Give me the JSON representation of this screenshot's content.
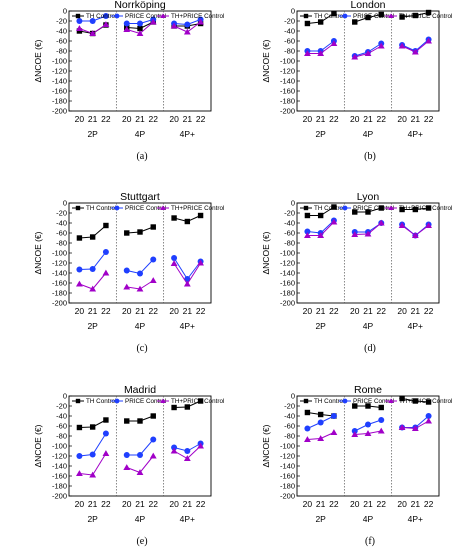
{
  "colors": {
    "th": "#000000",
    "price": "#1f3fff",
    "thprice": "#a100c8"
  },
  "chart_data": [
    {
      "type": "line",
      "title": "Norrköping",
      "caption": "(a)",
      "ylabel": "ΔNCOE (€)",
      "ylim": [
        -200,
        0
      ],
      "yticks": [
        0,
        -20,
        -40,
        -60,
        -80,
        -100,
        -120,
        -140,
        -160,
        -180,
        -200
      ],
      "groups": [
        "2P",
        "4P",
        "4P+"
      ],
      "x": [
        "20",
        "21",
        "22"
      ],
      "legend": [
        "TH Control",
        "PRICE Control",
        "TH+PRICE Control"
      ],
      "series": [
        {
          "name": "TH Control",
          "values": [
            [
              -40,
              -45,
              -28
            ],
            [
              -33,
              -35,
              -22
            ],
            [
              -30,
              -30,
              -25
            ]
          ]
        },
        {
          "name": "PRICE Control",
          "values": [
            [
              -20,
              -20,
              -10
            ],
            [
              -25,
              -25,
              -17
            ],
            [
              -25,
              -27,
              -17
            ]
          ]
        },
        {
          "name": "TH+PRICE Control",
          "values": [
            [
              -35,
              -45,
              -27
            ],
            [
              -37,
              -45,
              -22
            ],
            [
              -30,
              -42,
              -22
            ]
          ]
        }
      ]
    },
    {
      "type": "line",
      "title": "London",
      "caption": "(b)",
      "ylabel": "ΔNCOE (€)",
      "ylim": [
        -200,
        0
      ],
      "yticks": [
        0,
        -20,
        -40,
        -60,
        -80,
        -100,
        -120,
        -140,
        -160,
        -180,
        -200
      ],
      "groups": [
        "2P",
        "4P",
        "4P+"
      ],
      "x": [
        "20",
        "21",
        "22"
      ],
      "legend": [
        "TH Control",
        "PRICE Control",
        "TH+PRICE Control"
      ],
      "series": [
        {
          "name": "TH Control",
          "values": [
            [
              -25,
              -22,
              -5
            ],
            [
              -22,
              -13,
              -7
            ],
            [
              -12,
              -9,
              -3
            ]
          ]
        },
        {
          "name": "PRICE Control",
          "values": [
            [
              -80,
              -80,
              -60
            ],
            [
              -90,
              -82,
              -65
            ],
            [
              -68,
              -80,
              -57
            ]
          ]
        },
        {
          "name": "TH+PRICE Control",
          "values": [
            [
              -85,
              -85,
              -65
            ],
            [
              -92,
              -85,
              -70
            ],
            [
              -70,
              -82,
              -60
            ]
          ]
        }
      ]
    },
    {
      "type": "line",
      "title": "Stuttgart",
      "caption": "(c)",
      "ylabel": "ΔNCOE (€)",
      "ylim": [
        -200,
        0
      ],
      "yticks": [
        0,
        -20,
        -40,
        -60,
        -80,
        -100,
        -120,
        -140,
        -160,
        -180,
        -200
      ],
      "groups": [
        "2P",
        "4P",
        "4P+"
      ],
      "x": [
        "20",
        "21",
        "22"
      ],
      "legend": [
        "TH Control",
        "PRICE Control",
        "TH+PRICE Control"
      ],
      "series": [
        {
          "name": "TH Control",
          "values": [
            [
              -70,
              -68,
              -45
            ],
            [
              -60,
              -58,
              -48
            ],
            [
              -30,
              -37,
              -25
            ]
          ]
        },
        {
          "name": "PRICE Control",
          "values": [
            [
              -133,
              -132,
              -98
            ],
            [
              -135,
              -141,
              -113
            ],
            [
              -110,
              -152,
              -117
            ]
          ]
        },
        {
          "name": "TH+PRICE Control",
          "values": [
            [
              -162,
              -172,
              -140
            ],
            [
              -168,
              -172,
              -155
            ],
            [
              -121,
              -162,
              -120
            ]
          ]
        }
      ]
    },
    {
      "type": "line",
      "title": "Lyon",
      "caption": "(d)",
      "ylabel": "ΔNCOE (€)",
      "ylim": [
        -200,
        0
      ],
      "yticks": [
        0,
        -20,
        -40,
        -60,
        -80,
        -100,
        -120,
        -140,
        -160,
        -180,
        -200
      ],
      "groups": [
        "2P",
        "4P",
        "4P+"
      ],
      "x": [
        "20",
        "21",
        "22"
      ],
      "legend": [
        "TH Control",
        "PRICE Control",
        "TH+PRICE Control"
      ],
      "series": [
        {
          "name": "TH Control",
          "values": [
            [
              -25,
              -25,
              -8
            ],
            [
              -18,
              -18,
              -10
            ],
            [
              -13,
              -13,
              -10
            ]
          ]
        },
        {
          "name": "PRICE Control",
          "values": [
            [
              -57,
              -60,
              -35
            ],
            [
              -58,
              -58,
              -40
            ],
            [
              -43,
              -65,
              -43
            ]
          ]
        },
        {
          "name": "TH+PRICE Control",
          "values": [
            [
              -65,
              -65,
              -38
            ],
            [
              -63,
              -62,
              -40
            ],
            [
              -45,
              -65,
              -45
            ]
          ]
        }
      ]
    },
    {
      "type": "line",
      "title": "Madrid",
      "caption": "(e)",
      "ylabel": "ΔNCOE (€)",
      "ylim": [
        -200,
        0
      ],
      "yticks": [
        0,
        -20,
        -40,
        -60,
        -80,
        -100,
        -120,
        -140,
        -160,
        -180,
        -200
      ],
      "groups": [
        "2P",
        "4P",
        "4P+"
      ],
      "x": [
        "20",
        "21",
        "22"
      ],
      "legend": [
        "TH Control",
        "PRICE Control",
        "TH+PRICE Control"
      ],
      "series": [
        {
          "name": "TH Control",
          "values": [
            [
              -63,
              -62,
              -48
            ],
            [
              -50,
              -50,
              -40
            ],
            [
              -23,
              -22,
              -10
            ]
          ]
        },
        {
          "name": "PRICE Control",
          "values": [
            [
              -120,
              -117,
              -75
            ],
            [
              -118,
              -118,
              -87
            ],
            [
              -103,
              -110,
              -95
            ]
          ]
        },
        {
          "name": "TH+PRICE Control",
          "values": [
            [
              -155,
              -158,
              -115
            ],
            [
              -143,
              -153,
              -120
            ],
            [
              -110,
              -125,
              -100
            ]
          ]
        }
      ]
    },
    {
      "type": "line",
      "title": "Rome",
      "caption": "(f)",
      "ylabel": "ΔNCOE (€)",
      "ylim": [
        -200,
        0
      ],
      "yticks": [
        0,
        -20,
        -40,
        -60,
        -80,
        -100,
        -120,
        -140,
        -160,
        -180,
        -200
      ],
      "groups": [
        "2P",
        "4P",
        "4P+"
      ],
      "x": [
        "20",
        "21",
        "22"
      ],
      "legend": [
        "TH Control",
        "PRICE Control",
        "TH+PRICE Control"
      ],
      "series": [
        {
          "name": "TH Control",
          "values": [
            [
              -33,
              -37,
              -40
            ],
            [
              -20,
              -20,
              -23
            ],
            [
              -5,
              -10,
              -12
            ]
          ]
        },
        {
          "name": "PRICE Control",
          "values": [
            [
              -65,
              -53,
              -40
            ],
            [
              -70,
              -57,
              -48
            ],
            [
              -63,
              -63,
              -40
            ]
          ]
        },
        {
          "name": "TH+PRICE Control",
          "values": [
            [
              -87,
              -85,
              -73
            ],
            [
              -77,
              -75,
              -70
            ],
            [
              -63,
              -65,
              -50
            ]
          ]
        }
      ]
    }
  ]
}
